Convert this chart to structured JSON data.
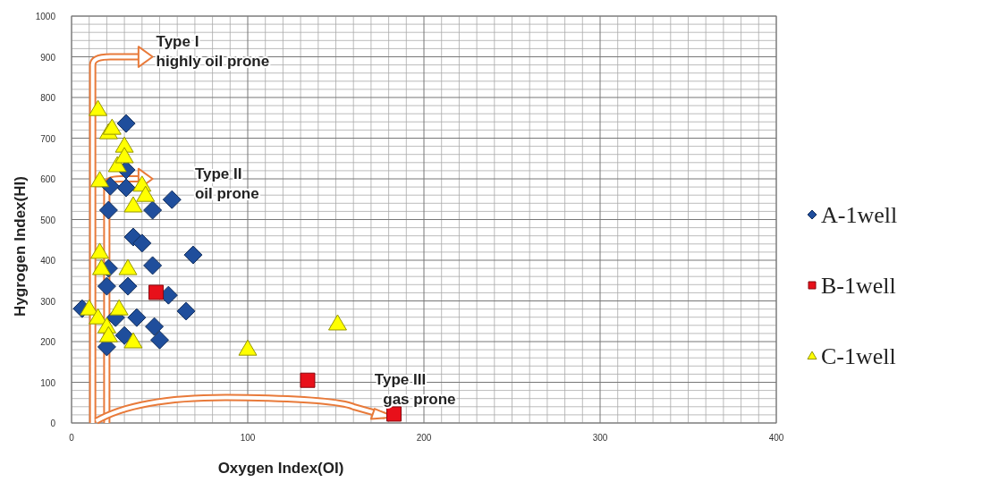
{
  "chart_data": {
    "type": "scatter",
    "xlabel": "Oxygen Index(OI)",
    "ylabel": "Hygrogen Index(HI)",
    "xlim": [
      0,
      400
    ],
    "ylim": [
      0,
      1000
    ],
    "xticks": [
      0,
      100,
      200,
      300,
      400
    ],
    "yticks": [
      0,
      100,
      200,
      300,
      400,
      500,
      600,
      700,
      800,
      900,
      1000
    ],
    "grid": true,
    "legend": "right",
    "series": [
      {
        "name": "A-1well",
        "color": "#1f4e9c",
        "marker": "diamond",
        "x": [
          31,
          21,
          31,
          31,
          22,
          46,
          57,
          35,
          40,
          46,
          69,
          21,
          20,
          32,
          55,
          65,
          6,
          47,
          50,
          37,
          20,
          30,
          25
        ],
        "values": [
          736,
          523,
          622,
          578,
          582,
          523,
          549,
          457,
          442,
          387,
          413,
          380,
          336,
          336,
          314,
          275,
          281,
          237,
          204,
          259,
          187,
          215,
          259
        ]
      },
      {
        "name": "B-1well",
        "color": "#e8101a",
        "marker": "square",
        "x": [
          48,
          134,
          183
        ],
        "values": [
          321,
          105,
          22
        ]
      },
      {
        "name": "C-1well",
        "color": "#ffff00",
        "marker": "triangle",
        "x": [
          15,
          21,
          23,
          30,
          26,
          30,
          16,
          40,
          42,
          35,
          32,
          16,
          17,
          10,
          15,
          27,
          20,
          35,
          100,
          151,
          21
        ],
        "values": [
          771,
          714,
          725,
          681,
          633,
          655,
          596,
          585,
          560,
          534,
          380,
          420,
          380,
          281,
          259,
          281,
          237,
          200,
          182,
          244,
          215
        ]
      }
    ],
    "annotations": [
      "Type I\nhighly oil prone",
      "Type II\noil prone",
      "Type III\n  gas prone"
    ]
  }
}
